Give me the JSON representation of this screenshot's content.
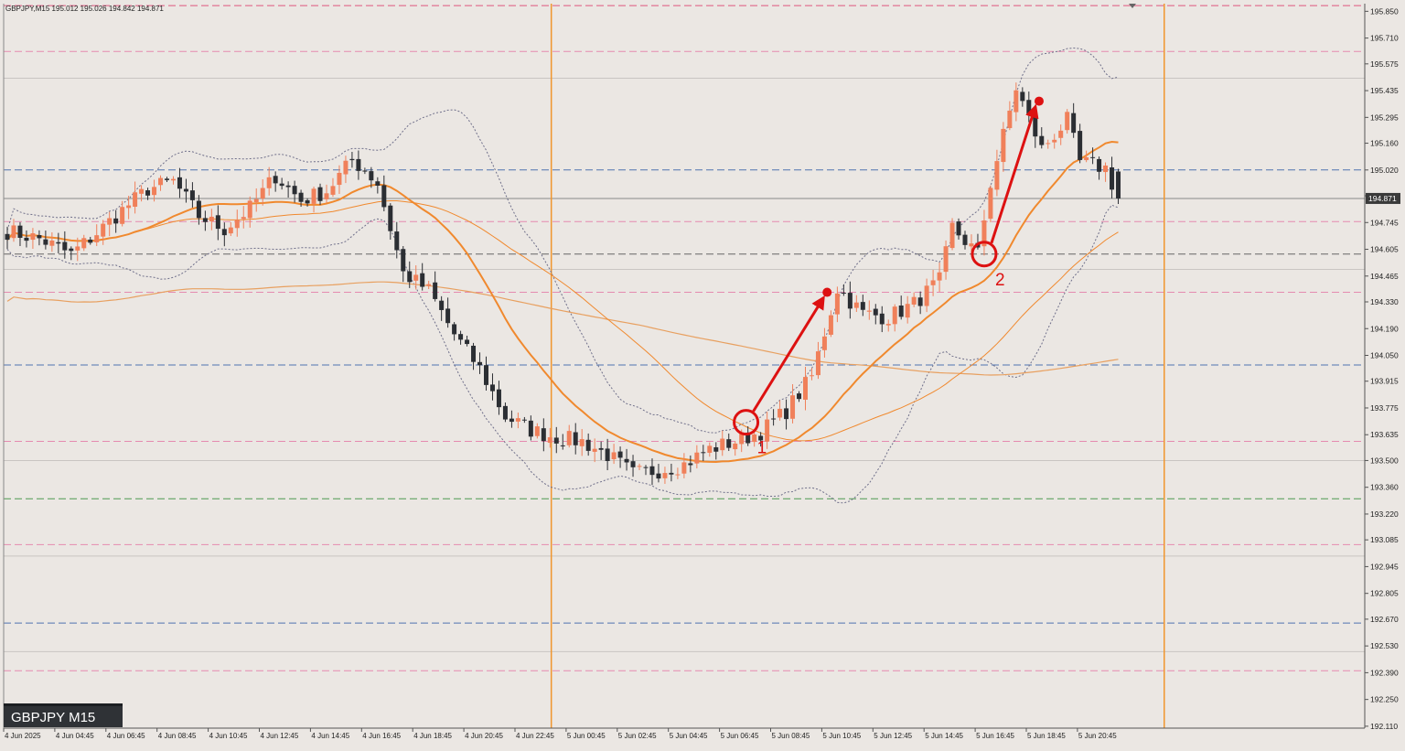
{
  "header": {
    "text": "GBPJPY,M15  195.012 195.026 194.842 194.871"
  },
  "symbol_label": "GBPJPY M15",
  "chart_data": {
    "type": "candlestick",
    "symbol": "GBPJPY",
    "timeframe": "M15",
    "ohlc_header": {
      "open": 195.012,
      "high": 195.026,
      "low": 194.842,
      "close": 194.871
    },
    "current_price": 194.871,
    "current_price_label": "194.871",
    "ylim": [
      192.1,
      195.89
    ],
    "y_ticks": [
      195.85,
      195.71,
      195.575,
      195.435,
      195.295,
      195.16,
      195.02,
      194.885,
      194.745,
      194.605,
      194.465,
      194.33,
      194.19,
      194.05,
      193.915,
      193.775,
      193.635,
      193.5,
      193.36,
      193.22,
      193.085,
      192.945,
      192.805,
      192.67,
      192.53,
      192.39,
      192.25,
      192.11
    ],
    "y_tick_labels": [
      "195.850",
      "195.710",
      "195.575",
      "195.435",
      "195.295",
      "195.160",
      "195.020",
      "194.885",
      "194.745",
      "194.605",
      "194.465",
      "194.330",
      "194.190",
      "194.050",
      "193.915",
      "193.775",
      "193.635",
      "193.500",
      "193.360",
      "193.220",
      "193.085",
      "192.945",
      "192.805",
      "192.670",
      "192.530",
      "192.390",
      "192.250",
      "192.110"
    ],
    "x_tick_labels": [
      "4 Jun 2025",
      "4 Jun 04:45",
      "4 Jun 06:45",
      "4 Jun 08:45",
      "4 Jun 10:45",
      "4 Jun 12:45",
      "4 Jun 14:45",
      "4 Jun 16:45",
      "4 Jun 18:45",
      "4 Jun 20:45",
      "4 Jun 22:45",
      "5 Jun 00:45",
      "5 Jun 02:45",
      "5 Jun 04:45",
      "5 Jun 06:45",
      "5 Jun 08:45",
      "5 Jun 10:45",
      "5 Jun 12:45",
      "5 Jun 14:45",
      "5 Jun 16:45",
      "5 Jun 18:45",
      "5 Jun 20:45"
    ],
    "candle_count": 175,
    "path_anchors": [
      [
        0,
        194.7
      ],
      [
        5,
        194.66
      ],
      [
        10,
        194.58
      ],
      [
        14,
        194.69
      ],
      [
        18,
        194.81
      ],
      [
        22,
        194.92
      ],
      [
        26,
        194.96
      ],
      [
        30,
        194.78
      ],
      [
        34,
        194.71
      ],
      [
        38,
        194.82
      ],
      [
        42,
        194.99
      ],
      [
        46,
        194.86
      ],
      [
        50,
        194.91
      ],
      [
        54,
        195.07
      ],
      [
        56,
        195.02
      ],
      [
        58,
        194.95
      ],
      [
        62,
        194.48
      ],
      [
        66,
        194.39
      ],
      [
        70,
        194.16
      ],
      [
        74,
        193.98
      ],
      [
        78,
        193.73
      ],
      [
        82,
        193.66
      ],
      [
        86,
        193.62
      ],
      [
        90,
        193.6
      ],
      [
        94,
        193.53
      ],
      [
        98,
        193.43
      ],
      [
        102,
        193.45
      ],
      [
        106,
        193.48
      ],
      [
        110,
        193.56
      ],
      [
        114,
        193.6
      ],
      [
        118,
        193.65
      ],
      [
        122,
        193.76
      ],
      [
        126,
        193.94
      ],
      [
        130,
        194.4
      ],
      [
        134,
        194.27
      ],
      [
        138,
        194.25
      ],
      [
        142,
        194.32
      ],
      [
        146,
        194.44
      ],
      [
        148,
        194.72
      ],
      [
        152,
        194.58
      ],
      [
        154,
        194.95
      ],
      [
        158,
        195.45
      ],
      [
        162,
        195.13
      ],
      [
        166,
        195.28
      ],
      [
        168,
        195.06
      ],
      [
        172,
        195.03
      ],
      [
        174,
        194.87
      ]
    ],
    "horizontal_levels": [
      {
        "price": 195.88,
        "style": "dashed",
        "color": "#e0557f"
      },
      {
        "price": 195.64,
        "style": "dashed",
        "color": "#e58ab0"
      },
      {
        "price": 195.5,
        "style": "solid",
        "color": "#c9c5c2"
      },
      {
        "price": 195.02,
        "style": "dashed",
        "color": "#4f73b0"
      },
      {
        "price": 194.871,
        "style": "solid",
        "color": "#8a8a8a"
      },
      {
        "price": 194.75,
        "style": "dashed",
        "color": "#e58ab0"
      },
      {
        "price": 194.58,
        "style": "dashed",
        "color": "#666666"
      },
      {
        "price": 194.5,
        "style": "solid",
        "color": "#c9c5c2"
      },
      {
        "price": 194.38,
        "style": "dashed",
        "color": "#e58ab0"
      },
      {
        "price": 194.0,
        "style": "dashed",
        "color": "#4f73b0"
      },
      {
        "price": 193.6,
        "style": "dashed",
        "color": "#e58ab0"
      },
      {
        "price": 193.5,
        "style": "solid",
        "color": "#c9c5c2"
      },
      {
        "price": 193.3,
        "style": "dashed",
        "color": "#4e9a52"
      },
      {
        "price": 193.06,
        "style": "dashed",
        "color": "#e58ab0"
      },
      {
        "price": 193.0,
        "style": "solid",
        "color": "#c9c5c2"
      },
      {
        "price": 192.65,
        "style": "dashed",
        "color": "#4f73b0"
      },
      {
        "price": 192.5,
        "style": "solid",
        "color": "#c9c5c2"
      },
      {
        "price": 192.4,
        "style": "dashed",
        "color": "#e58ab0"
      }
    ],
    "vertical_lines": [
      {
        "candle_index": 85.2,
        "color": "#f0962e"
      },
      {
        "candle_index": 181.2,
        "color": "#f0962e"
      }
    ],
    "annotations": [
      {
        "label": "1",
        "circle_candle": 115.7,
        "circle_price": 193.7,
        "arrow_to_candle": 128.4,
        "arrow_to_price": 194.38
      },
      {
        "label": "2",
        "circle_candle": 153.0,
        "circle_price": 194.58,
        "arrow_to_candle": 161.6,
        "arrow_to_price": 195.38
      }
    ],
    "colors": {
      "background": "#ebe7e3",
      "bull_candle": "#f0805a",
      "bear_candle": "#2b2e33",
      "moving_average": "#f0892e",
      "bollinger_band": "#6f6f8a",
      "annotation": "#dd1111",
      "vertical_line": "#f0962e"
    },
    "grid": false,
    "legend": "none"
  }
}
